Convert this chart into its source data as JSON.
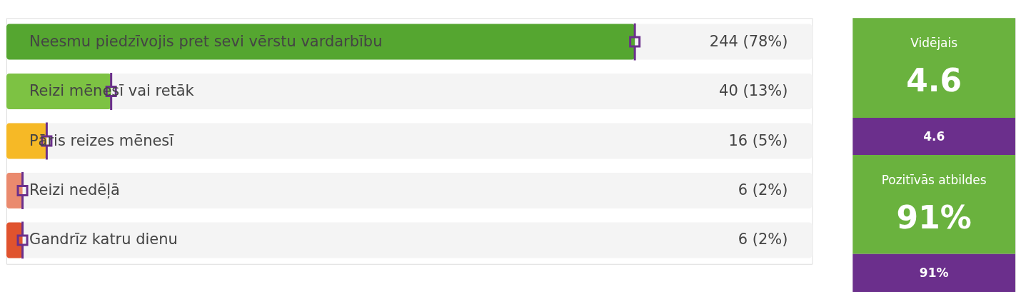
{
  "chart_data": [
    {
      "type": "bar",
      "orientation": "horizontal",
      "categories": [
        "Neesmu piedzīvojis pret sevi vērstu vardarbību",
        "Reizi mēnesī vai retāk",
        "Pāris reizes mēnesī",
        "Reizi nedēļā",
        "Gandrīz katru dienu"
      ],
      "series": [
        {
          "type": "bar",
          "colors": [
            "#55a630",
            "#7dc243",
            "#f6b926",
            "#ea8a6e",
            "#e0532e"
          ],
          "values": [
            78,
            13,
            5,
            2,
            2
          ],
          "value_labels": [
            "244 (78%)",
            "40 (13%)",
            "16 (5%)",
            "6 (2%)",
            "6 (2%)"
          ]
        },
        {
          "type": "scatter",
          "color": "#6b2f8c",
          "marker": "square",
          "values": [
            78,
            13,
            5,
            2,
            2
          ]
        }
      ],
      "xlim": [
        0,
        100
      ],
      "tick_labels": false,
      "legend": false
    },
    {
      "type": "other",
      "colors": [
        "#6ab23e",
        "#6b2f8c",
        "#6ab23e",
        "#6b2f8c"
      ],
      "annotations": [
        "Vidējais",
        "4.6",
        "4.6",
        "Pozitīvās atbildes",
        "91%",
        "91%"
      ]
    }
  ]
}
